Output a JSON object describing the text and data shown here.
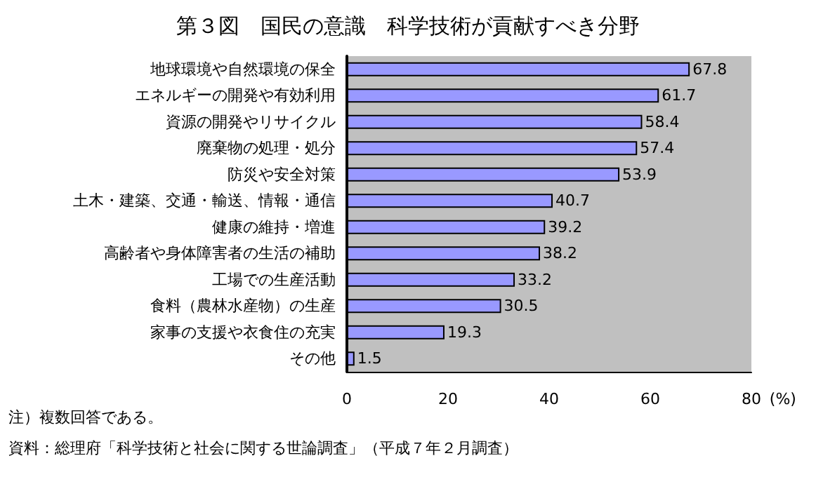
{
  "chart_data": {
    "type": "bar",
    "orientation": "horizontal",
    "title": "第３図　国民の意識　科学技術が貢献すべき分野",
    "categories": [
      "地球環境や自然環境の保全",
      "エネルギーの開発や有効利用",
      "資源の開発やリサイクル",
      "廃棄物の処理・処分",
      "防災や安全対策",
      "土木・建築、交通・輸送、情報・通信",
      "健康の維持・増進",
      "高齢者や身体障害者の生活の補助",
      "工場での生産活動",
      "食料（農林水産物）の生産",
      "家事の支援や衣食住の充実",
      "その他"
    ],
    "values": [
      67.8,
      61.7,
      58.4,
      57.4,
      53.9,
      40.7,
      39.2,
      38.2,
      33.2,
      30.5,
      19.3,
      1.5
    ],
    "color": "#9999ff",
    "xlim": [
      0,
      80
    ],
    "xticks": [
      0,
      20,
      40,
      60,
      80
    ],
    "xlabel": "(%)",
    "data_labels": true,
    "grid": false,
    "annotations": [
      "注）複数回答である。",
      "資料：総理府「科学技術と社会に関する世論調査」（平成７年２月調査）"
    ]
  }
}
